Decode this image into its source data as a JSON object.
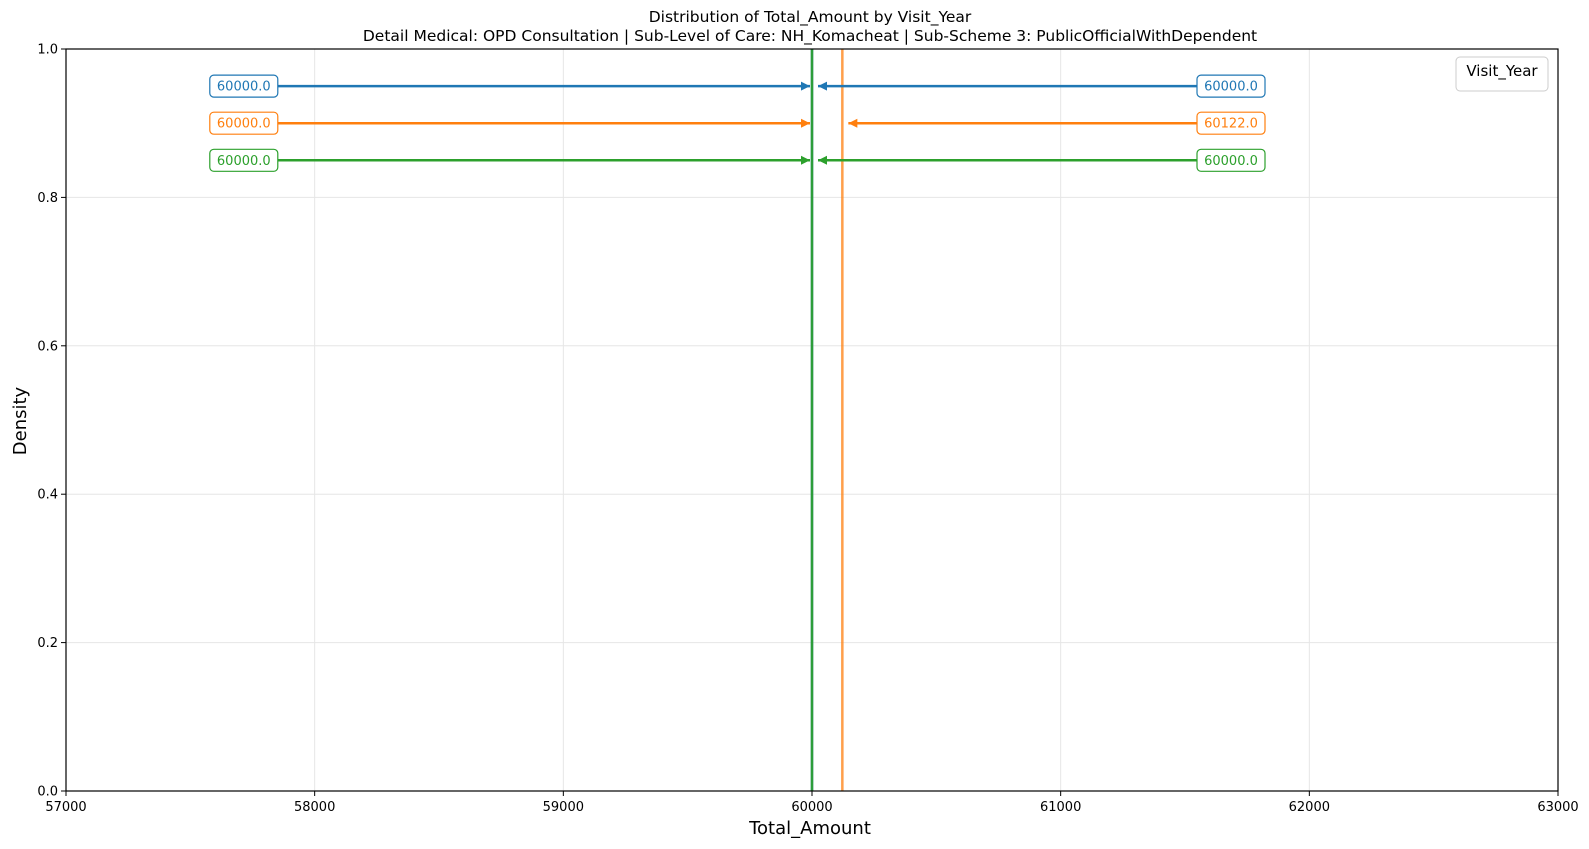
{
  "chart_data": {
    "type": "line",
    "title": "Distribution of Total_Amount by Visit_Year",
    "subtitle": "Detail Medical: OPD Consultation | Sub-Level of Care: NH_Komacheat | Sub-Scheme 3: PublicOfficialWithDependent",
    "xlabel": "Total_Amount",
    "ylabel": "Density",
    "xlim": [
      57000,
      63000
    ],
    "ylim": [
      0,
      1.0
    ],
    "xticks": [
      57000,
      58000,
      59000,
      60000,
      61000,
      62000,
      63000
    ],
    "xtick_labels": [
      "57000",
      "58000",
      "59000",
      "60000",
      "61000",
      "62000",
      "63000"
    ],
    "yticks": [
      0,
      0.2,
      0.4,
      0.6,
      0.8,
      1.0
    ],
    "ytick_labels": [
      "0.0",
      "0.2",
      "0.4",
      "0.6",
      "0.8",
      "1.0"
    ],
    "grid": true,
    "legend": {
      "title": "Visit_Year",
      "placement": "top-right",
      "entries": []
    },
    "series": [
      {
        "color": "#1f77b4",
        "line_x": 60000,
        "y": 0.95,
        "left_value": 60000.0,
        "left_label": "60000.0",
        "right_value": 60000.0,
        "right_label": "60000.0"
      },
      {
        "color": "#ff7f0e",
        "line_x": 60122,
        "y": 0.9,
        "left_value": 60000.0,
        "left_label": "60000.0",
        "right_value": 60122.0,
        "right_label": "60122.0"
      },
      {
        "color": "#2ca02c",
        "line_x": 60000,
        "y": 0.85,
        "left_value": 60000.0,
        "left_label": "60000.0",
        "right_value": 60000.0,
        "right_label": "60000.0"
      }
    ]
  }
}
